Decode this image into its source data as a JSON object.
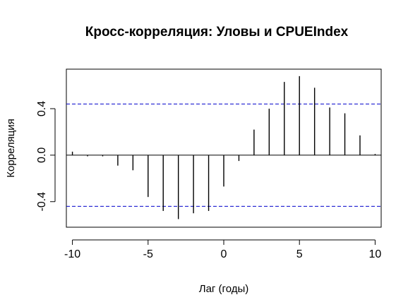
{
  "chart_data": {
    "type": "bar",
    "title": "Кросс-корреляция: Уловы и CPUEIndex",
    "xlabel": "Лаг (годы)",
    "ylabel": "Корреляция",
    "xlim": [
      -10.4,
      10.4
    ],
    "ylim": [
      -0.62,
      0.74
    ],
    "x_ticks": [
      -10,
      -5,
      0,
      5,
      10
    ],
    "x_tick_labels": [
      "-10",
      "-5",
      "0",
      "5",
      "10"
    ],
    "y_ticks": [
      -0.4,
      0.0,
      0.4
    ],
    "y_tick_labels": [
      "-0.4",
      "0.0",
      "0.4"
    ],
    "grid": false,
    "confidence_bounds": [
      0.44,
      -0.44
    ],
    "confidence_line_color": "#0000cc",
    "bar_color": "#000000",
    "x": [
      -10,
      -9,
      -8,
      -7,
      -6,
      -5,
      -4,
      -3,
      -2,
      -1,
      0,
      1,
      2,
      3,
      4,
      5,
      6,
      7,
      8,
      9,
      10
    ],
    "values": [
      0.03,
      -0.01,
      -0.01,
      -0.09,
      -0.13,
      -0.36,
      -0.48,
      -0.55,
      -0.5,
      -0.48,
      -0.27,
      -0.05,
      0.22,
      0.4,
      0.63,
      0.68,
      0.58,
      0.41,
      0.36,
      0.17,
      0.01
    ]
  }
}
